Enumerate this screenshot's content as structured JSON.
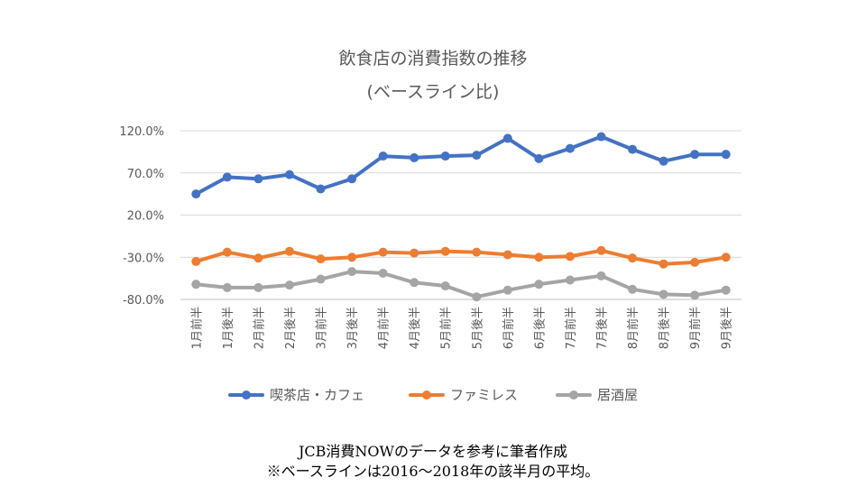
{
  "chart_data": {
    "type": "line",
    "title": "飲食店の消費指数の推移",
    "subtitle": "(ベースライン比)",
    "categories": [
      "1月前半",
      "1月後半",
      "2月前半",
      "2月後半",
      "3月前半",
      "3月後半",
      "4月前半",
      "4月後半",
      "5月前半",
      "5月後半",
      "6月前半",
      "6月後半",
      "7月前半",
      "7月後半",
      "8月前半",
      "8月後半",
      "9月前半",
      "9月後半"
    ],
    "yticks": [
      "120.0%",
      "70.0%",
      "20.0%",
      "-30.0%",
      "-80.0%"
    ],
    "ytick_values": [
      120,
      70,
      20,
      -30,
      -80
    ],
    "ylim": [
      -80,
      120
    ],
    "grid": true,
    "legend_position": "bottom",
    "series": [
      {
        "name": "喫茶店・カフェ",
        "color": "#4472C4",
        "values": [
          45,
          65,
          63,
          68,
          51,
          63,
          90,
          88,
          90,
          91,
          111,
          87,
          99,
          113,
          98,
          84,
          92,
          92
        ]
      },
      {
        "name": "ファミレス",
        "color": "#ED7D31",
        "values": [
          -35,
          -24,
          -31,
          -23,
          -32,
          -30,
          -24,
          -25,
          -23,
          -24,
          -27,
          -30,
          -29,
          -22,
          -31,
          -38,
          -36,
          -30
        ]
      },
      {
        "name": "居酒屋",
        "color": "#A5A5A5",
        "values": [
          -62,
          -66,
          -66,
          -63,
          -56,
          -47,
          -49,
          -60,
          -64,
          -77,
          -69,
          -62,
          -57,
          -52,
          -68,
          -74,
          -75,
          -69
        ]
      }
    ]
  },
  "footnotes": {
    "line1": "JCB消費NOWのデータを参考に筆者作成",
    "line2": "※ベースラインは2016～2018年の該半月の平均。"
  }
}
